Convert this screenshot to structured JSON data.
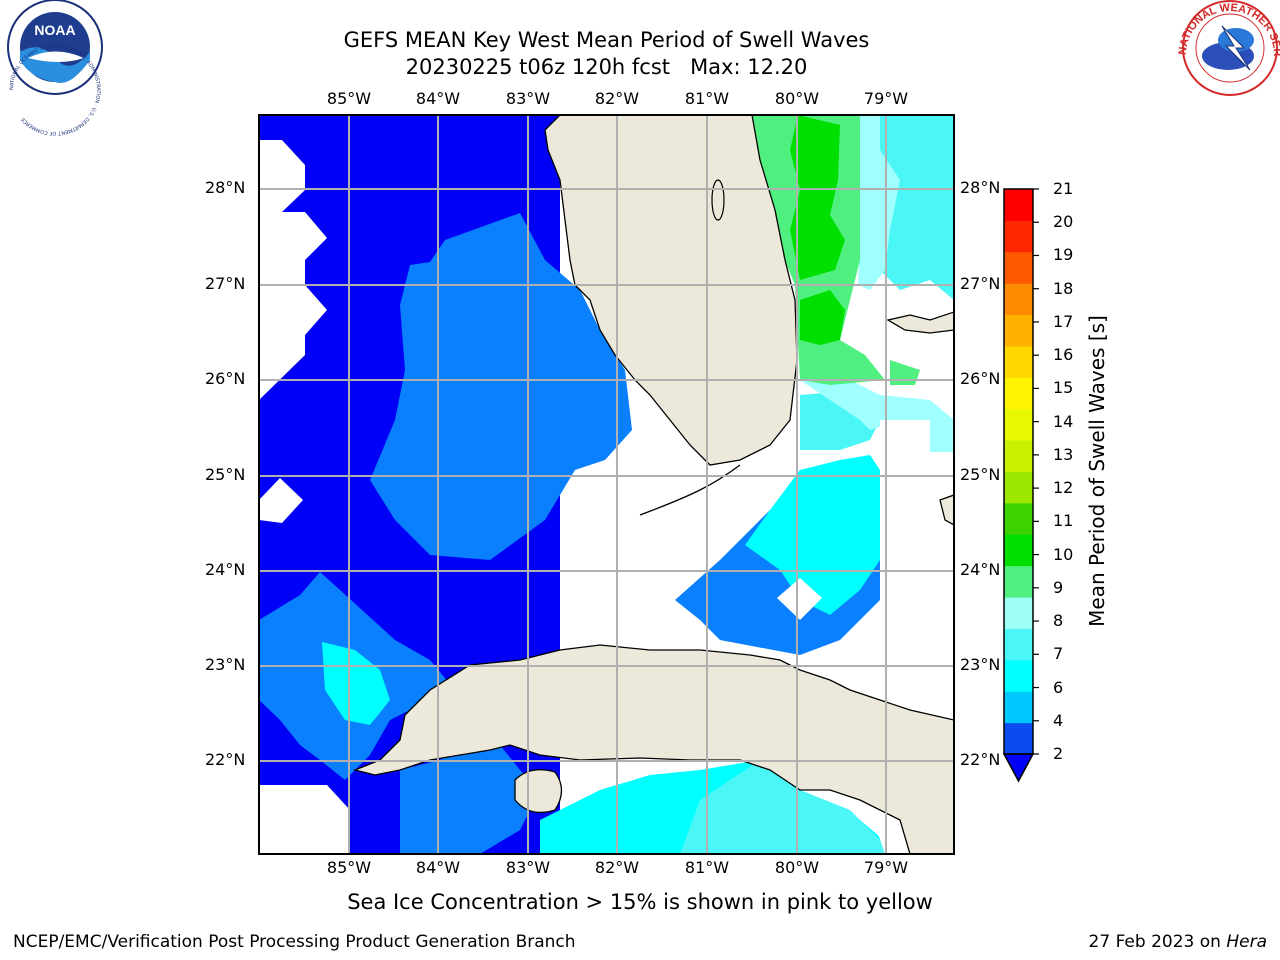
{
  "title": {
    "line1": "GEFS MEAN Key West Mean Period of Swell Waves",
    "line2_prefix": "20230225 t06z 120h fcst",
    "line2_max": "Max: 12.20"
  },
  "map": {
    "lon_ticks": [
      "85°W",
      "84°W",
      "83°W",
      "82°W",
      "81°W",
      "80°W",
      "79°W"
    ],
    "lat_ticks": [
      "22°N",
      "23°N",
      "24°N",
      "25°N",
      "26°N",
      "27°N",
      "28°N"
    ],
    "colors": {
      "land": "#ece9da",
      "no_data": "#ffffff",
      "grid": "#b0b0b0",
      "coast": "#000000",
      "band_2_4": "#0000f6",
      "band_4_6": "#0a80ff",
      "band_6_8": "#00ffff",
      "band_8_9": "#4af6f6",
      "band_9_10": "#a0ffff",
      "band_10_11": "#50f080",
      "band_11_12": "#00e000"
    }
  },
  "colorbar": {
    "label": "Mean Period of Swell Waves [s]",
    "ticks": [
      "2",
      "4",
      "6",
      "7",
      "8",
      "9",
      "10",
      "11",
      "12",
      "13",
      "14",
      "15",
      "16",
      "17",
      "18",
      "19",
      "20",
      "21"
    ],
    "segment_colors": [
      "#0a4cf0",
      "#00c8ff",
      "#00ffff",
      "#4af6f6",
      "#9dfff3",
      "#50f080",
      "#00e000",
      "#3bd200",
      "#9ce600",
      "#c8f000",
      "#e8f800",
      "#fff400",
      "#ffd800",
      "#ffb000",
      "#ff8c00",
      "#ff5a00",
      "#ff2600",
      "#ff0000"
    ],
    "extend_color": "#0000f6"
  },
  "logos": {
    "noaa": "NOAA",
    "noaa_ring": "NATIONAL OCEANIC AND ATMOSPHERIC ADMINISTRATION · U.S. DEPARTMENT OF COMMERCE",
    "nws_ring": "NATIONAL WEATHER SERVICE"
  },
  "footer": {
    "note": "Sea Ice Concentration > 15% is shown in pink to yellow",
    "left": "NCEP/EMC/Verification Post Processing Product Generation Branch",
    "right_prefix": "27 Feb 2023 on",
    "right_host": "Hera"
  }
}
